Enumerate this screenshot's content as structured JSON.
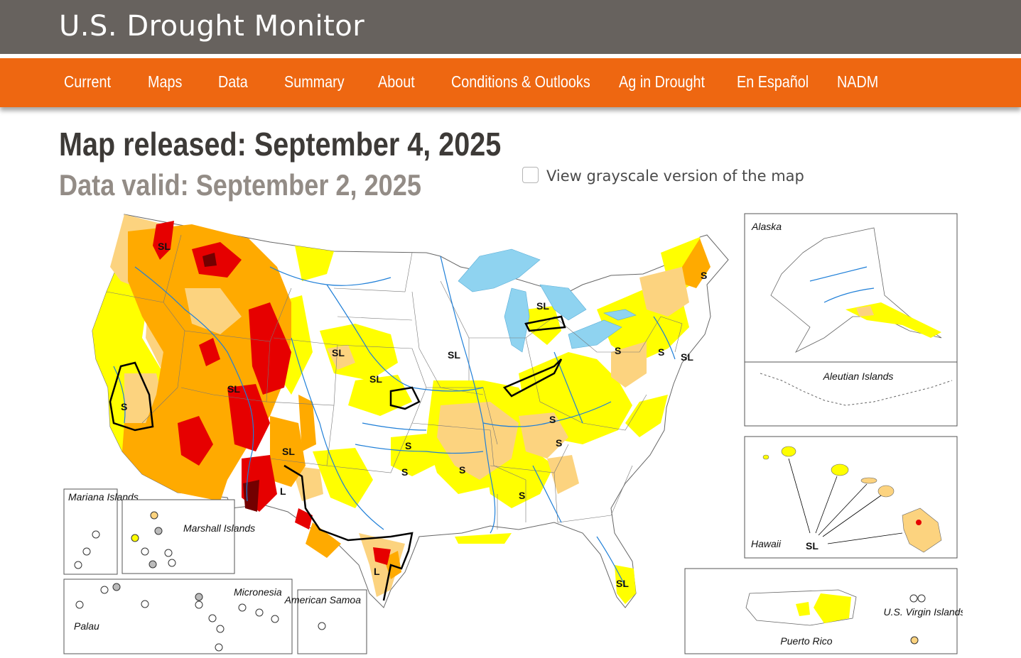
{
  "site": {
    "title": "U.S. Drought Monitor"
  },
  "nav": [
    {
      "label": "Current"
    },
    {
      "label": "Maps"
    },
    {
      "label": "Data"
    },
    {
      "label": "Summary"
    },
    {
      "label": "About"
    },
    {
      "label": "Conditions & Outlooks"
    },
    {
      "label": "Ag in Drought"
    },
    {
      "label": "En Español"
    },
    {
      "label": "NADM"
    }
  ],
  "map_info": {
    "released": "Map released: September 4, 2025",
    "valid": "Data valid: September 2, 2025",
    "grayscale_label": "View grayscale version of the map",
    "grayscale_checked": false
  },
  "legend_colors": {
    "D0": "#ffff00",
    "D1": "#fcd37f",
    "D2": "#ffaa00",
    "D3": "#e60000",
    "D4": "#730000",
    "water": "#8fd3f0",
    "rivers": "#1f7fd8"
  },
  "impact_labels": {
    "sl": "SL",
    "s": "S",
    "l": "L"
  },
  "insets": {
    "alaska": "Alaska",
    "aleutian": "Aleutian Islands",
    "hawaii": "Hawaii",
    "puerto_rico": "Puerto Rico",
    "usvi": "U.S. Virgin Islands",
    "mariana": "Mariana Islands",
    "marshall": "Marshall Islands",
    "micronesia": "Micronesia",
    "palau": "Palau",
    "samoa": "American Samoa"
  }
}
